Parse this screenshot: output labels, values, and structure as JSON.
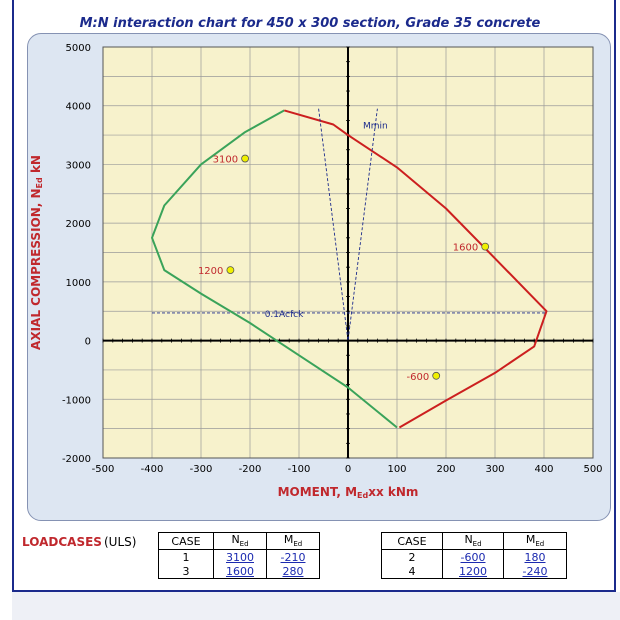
{
  "chart_data": {
    "type": "line",
    "title": "M:N interaction chart for 450 x 300 section, Grade 35 concrete",
    "xlabel": "MOMENT, M",
    "xlabel_sub": "Ed",
    "xlabel_suffix": "xx kNm",
    "ylabel": "AXIAL COMPRESSION, N",
    "ylabel_sub": "Ed",
    "ylabel_suffix": " kN",
    "xlim": [
      -500,
      500
    ],
    "ylim": [
      -2000,
      5000
    ],
    "xticks": [
      -500,
      -400,
      -300,
      -200,
      -100,
      0,
      100,
      200,
      300,
      400,
      500
    ],
    "yticks": [
      -2000,
      -1000,
      0,
      1000,
      2000,
      3000,
      4000,
      5000
    ],
    "grid": true,
    "series": [
      {
        "color": "#3aa35a",
        "x": [
          -130,
          -210,
          -300,
          -375,
          -400,
          -375,
          -300,
          -200,
          -100,
          0,
          100
        ],
        "y": [
          3920,
          3550,
          3000,
          2300,
          1750,
          1200,
          800,
          300,
          -250,
          -800,
          -1480
        ]
      },
      {
        "color": "#cc1f1f",
        "x": [
          -130,
          -30,
          0,
          100,
          200,
          300,
          370,
          405,
          380,
          300,
          200,
          105
        ],
        "y": [
          3920,
          3680,
          3500,
          2950,
          2250,
          1400,
          800,
          500,
          -100,
          -550,
          -1020,
          -1480
        ]
      },
      {
        "color": "#1b2a8c",
        "dash": true,
        "x": [
          -60,
          0,
          60
        ],
        "y": [
          3950,
          0,
          3950
        ]
      }
    ],
    "reference_line": {
      "label": "0.1Acfck",
      "y": 470,
      "x_from": -400,
      "x_to": 405
    },
    "annotation_mmin": {
      "label": "Mmin",
      "x": 55,
      "y": 3680
    },
    "points": [
      {
        "label": "3100",
        "x": -210,
        "y": 3100
      },
      {
        "label": "1200",
        "x": -240,
        "y": 1200
      },
      {
        "label": "1600",
        "x": 280,
        "y": 1600
      },
      {
        "label": "-600",
        "x": 180,
        "y": -600
      }
    ]
  },
  "loadcases": {
    "label": "LOADCASES",
    "type": "(ULS)",
    "headers": {
      "case": "CASE",
      "n": "N",
      "m": "M",
      "sub": "Ed"
    },
    "left": [
      {
        "case": "1",
        "n": "3100",
        "m": "-210"
      },
      {
        "case": "3",
        "n": "1600",
        "m": "280"
      }
    ],
    "right": [
      {
        "case": "2",
        "n": "-600",
        "m": "180"
      },
      {
        "case": "4",
        "n": "1200",
        "m": "-240"
      }
    ]
  }
}
